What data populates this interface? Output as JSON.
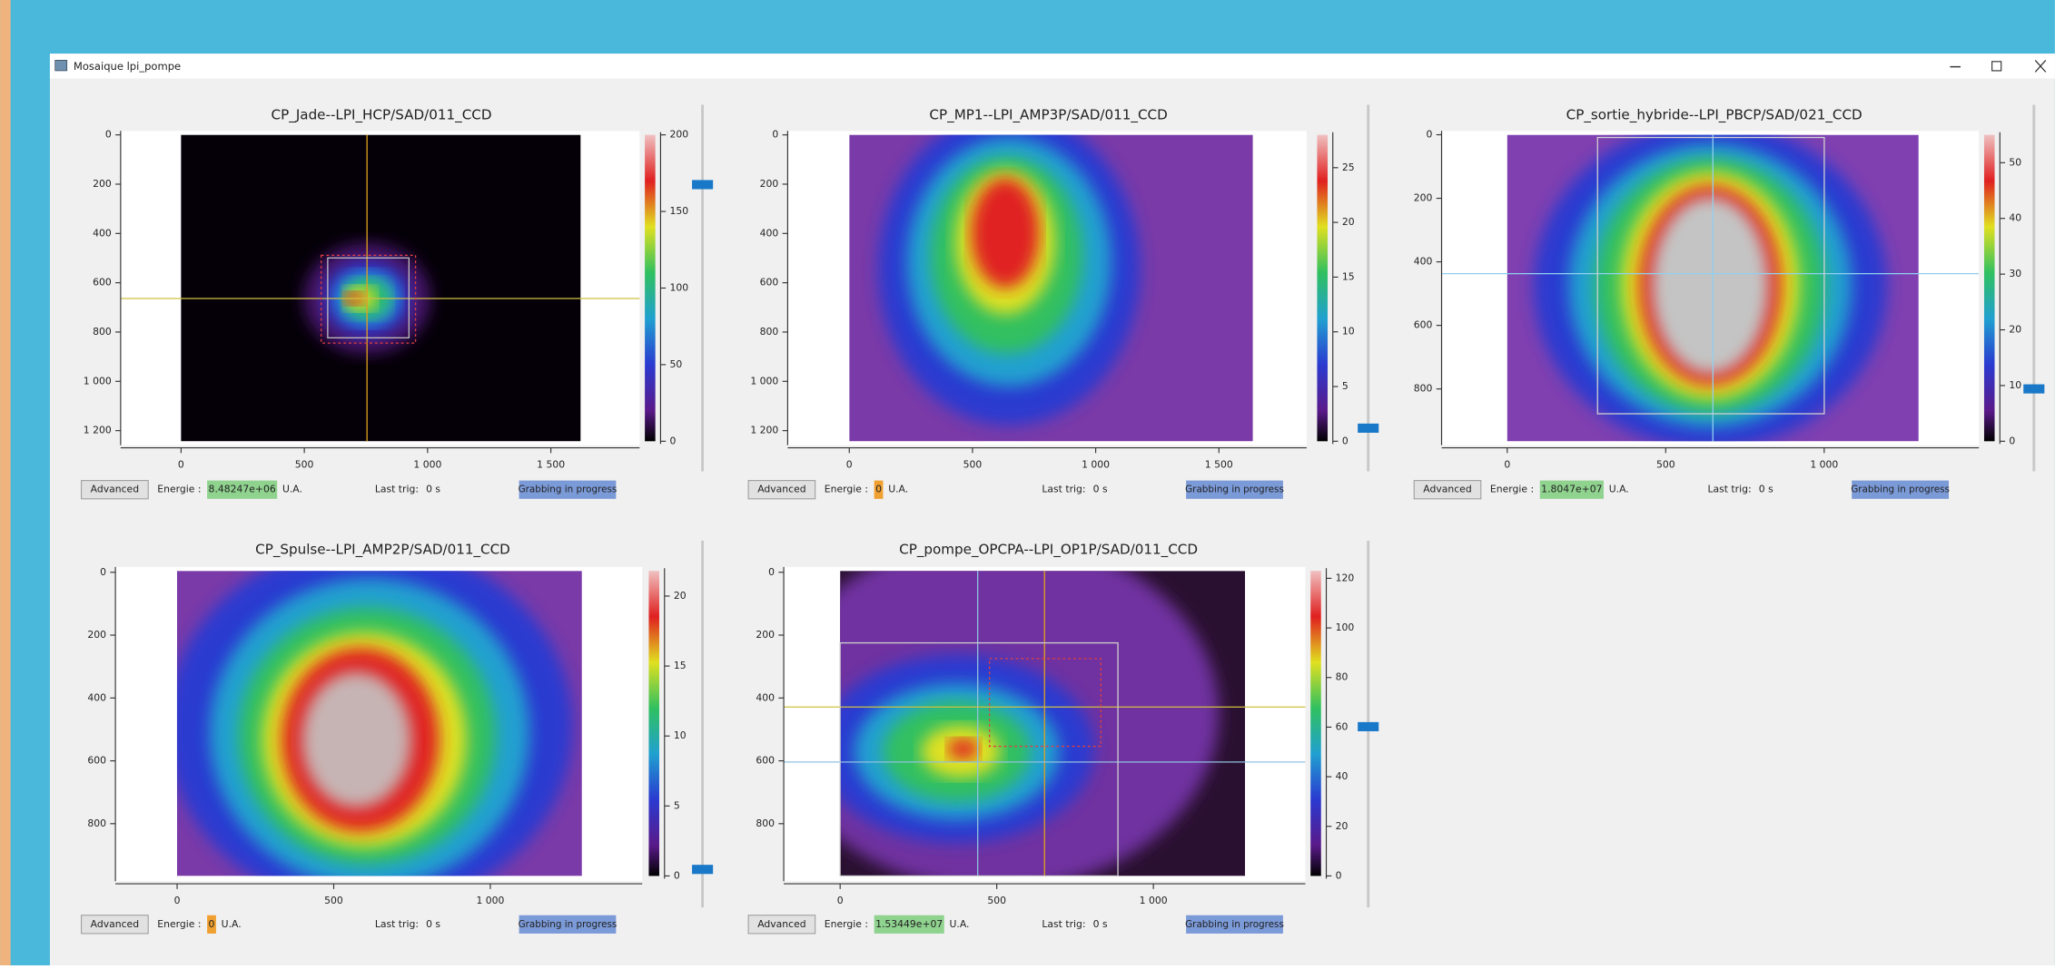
{
  "window": {
    "title": "Mosaique lpi_pompe"
  },
  "panels": [
    {
      "title": "CP_Jade--LPI_HCP/SAD/011_CCD",
      "xlim": [
        -245,
        1860
      ],
      "ylim": [
        -16,
        1259
      ],
      "xticks": [
        0,
        500,
        {
          "value": 1000,
          "label": "1 000"
        },
        {
          "value": 1500,
          "label": "1 500"
        }
      ],
      "yticks": [
        0,
        200,
        400,
        600,
        800,
        {
          "value": 1000,
          "label": "1 000"
        },
        {
          "value": 1200,
          "label": "1 200"
        }
      ],
      "clim": [
        0,
        200
      ],
      "cticks": [
        0,
        50,
        100,
        150,
        200
      ],
      "button": "Advanced",
      "energy_label": "Energie :",
      "energy": "8.48247e+06",
      "energy_color": "#8fd38f",
      "unit": "U.A.",
      "trig_label": "Last trig:",
      "trig": "0 s",
      "status": "Grabbing in progress"
    },
    {
      "title": "CP_MP1--LPI_AMP3P/SAD/011_CCD",
      "xlim": [
        -250,
        1856
      ],
      "ylim": [
        -16,
        1259
      ],
      "xticks": [
        0,
        500,
        {
          "value": 1000,
          "label": "1 000"
        },
        {
          "value": 1500,
          "label": "1 500"
        }
      ],
      "yticks": [
        0,
        200,
        400,
        600,
        800,
        {
          "value": 1000,
          "label": "1 000"
        },
        {
          "value": 1200,
          "label": "1 200"
        }
      ],
      "clim": [
        0,
        28
      ],
      "cticks": [
        0,
        5,
        10,
        15,
        20,
        25
      ],
      "button": "Advanced",
      "energy_label": "Energie :",
      "energy": "0",
      "energy_color": "#f0a030",
      "unit": "U.A.",
      "trig_label": "Last trig:",
      "trig": "0 s",
      "status": "Grabbing in progress"
    },
    {
      "title": "CP_sortie_hybride--LPI_PBCP/SAD/021_CCD",
      "xlim": [
        -207,
        1488
      ],
      "ylim": [
        -12,
        977
      ],
      "xticks": [
        0,
        500,
        {
          "value": 1000,
          "label": "1 000"
        }
      ],
      "yticks": [
        0,
        200,
        400,
        600,
        800
      ],
      "clim": [
        0,
        55
      ],
      "cticks": [
        0,
        10,
        20,
        30,
        40,
        50
      ],
      "button": "Advanced",
      "energy_label": "Energie :",
      "energy": "1.8047e+07",
      "energy_color": "#8fd38f",
      "unit": "U.A.",
      "trig_label": "Last trig:",
      "trig": "0 s",
      "status": "Grabbing in progress"
    },
    {
      "title": "CP_Spulse--LPI_AMP2P/SAD/011_CCD",
      "xlim": [
        -197,
        1485
      ],
      "ylim": [
        -17,
        983
      ],
      "xticks": [
        0,
        500,
        {
          "value": 1000,
          "label": "1 000"
        }
      ],
      "yticks": [
        0,
        200,
        400,
        600,
        800
      ],
      "clim": [
        0,
        21.8
      ],
      "cticks": [
        0,
        5,
        10,
        15,
        20
      ],
      "button": "Advanced",
      "energy_label": "Energie :",
      "energy": "0",
      "energy_color": "#f0a030",
      "unit": "U.A.",
      "trig_label": "Last trig:",
      "trig": "0 s",
      "status": "Grabbing in progress"
    },
    {
      "title": "CP_pompe_OPCPA--LPI_OP1P/SAD/011_CCD",
      "xlim": [
        -180,
        1485
      ],
      "ylim": [
        -17,
        983
      ],
      "xticks": [
        0,
        500,
        {
          "value": 1000,
          "label": "1 000"
        }
      ],
      "yticks": [
        0,
        200,
        400,
        600,
        800
      ],
      "clim": [
        0,
        123
      ],
      "cticks": [
        0,
        20,
        40,
        60,
        80,
        100,
        120
      ],
      "button": "Advanced",
      "energy_label": "Energie :",
      "energy": "1.53449e+07",
      "energy_color": "#8fd38f",
      "unit": "U.A.",
      "trig_label": "Last trig:",
      "trig": "0 s",
      "status": "Grabbing in progress"
    }
  ]
}
